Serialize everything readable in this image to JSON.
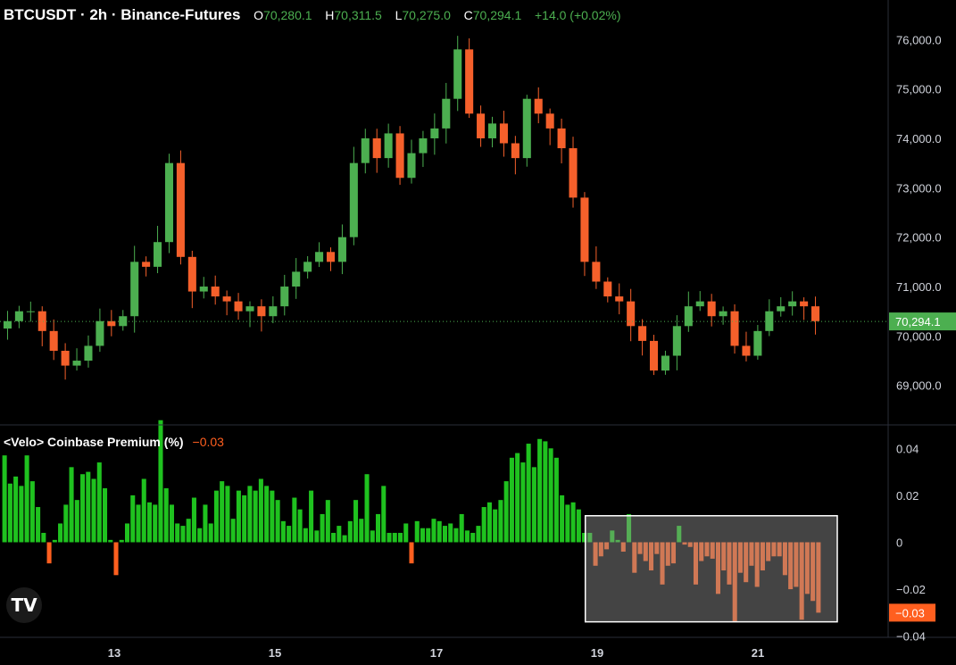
{
  "header": {
    "symbol": "BTCUSDT · 2h · Binance-Futures",
    "o_label": "O",
    "o_value": "70,280.1",
    "h_label": "H",
    "h_value": "70,311.5",
    "l_label": "L",
    "l_value": "70,275.0",
    "c_label": "C",
    "c_value": "70,294.1",
    "change": "+14.0 (+0.02%)"
  },
  "indicator": {
    "name": "<Velo> Coinbase Premium (%)",
    "value": "−0.03"
  },
  "logo_text": "TV",
  "colors": {
    "up": "#1fc21f",
    "down": "#ff5f1f",
    "candle_up": "#4caf50",
    "candle_down": "#f5602b",
    "price_tag": "#4caf50",
    "premium_tag": "#ff5f1f"
  },
  "chart_data": [
    {
      "type": "candlestick",
      "title": "BTCUSDT · 2h · Binance-Futures",
      "x_ticks": [
        "13",
        "15",
        "17",
        "19",
        "21"
      ],
      "y_ticks": [
        "76,000.0",
        "75,000.0",
        "74,000.0",
        "73,000.0",
        "72,000.0",
        "71,000.0",
        "70,000.0",
        "69,000.0"
      ],
      "y_tick_values": [
        76000,
        75000,
        74000,
        73000,
        72000,
        71000,
        70000,
        69000
      ],
      "ylim": [
        68200,
        76800
      ],
      "last_price": 70294.1,
      "last_price_label": "70,294.1",
      "close_path": [
        70300,
        70500,
        70500,
        70100,
        69700,
        69400,
        69500,
        69800,
        70300,
        70200,
        70400,
        71500,
        71400,
        71900,
        73500,
        71600,
        70900,
        71000,
        70800,
        70700,
        70500,
        70600,
        70400,
        70600,
        71000,
        71300,
        71500,
        71700,
        71500,
        72000,
        73500,
        74000,
        73600,
        74100,
        73200,
        73700,
        74000,
        74200,
        74800,
        75800,
        74500,
        74000,
        74300,
        73900,
        73600,
        74800,
        74500,
        74200,
        73800,
        72800,
        71500,
        71100,
        70800,
        70700,
        70200,
        69900,
        69300,
        69600,
        70200,
        70600,
        70700,
        70400,
        70500,
        69800,
        69600,
        70100,
        70500,
        70600,
        70700,
        70600,
        70300
      ]
    },
    {
      "type": "bar",
      "title": "<Velo> Coinbase Premium (%)",
      "y_ticks": [
        "0.04",
        "0.02",
        "0",
        "−0.02",
        "−0.04"
      ],
      "y_tick_values": [
        0.04,
        0.02,
        0,
        -0.02,
        -0.04
      ],
      "ylim": [
        -0.0405,
        0.05
      ],
      "current_value": -0.03,
      "current_value_label": "−0.03",
      "values": [
        0.037,
        0.025,
        0.028,
        0.024,
        0.037,
        0.026,
        0.015,
        0.004,
        -0.009,
        0.001,
        0.008,
        0.016,
        0.032,
        0.018,
        0.029,
        0.03,
        0.027,
        0.034,
        0.023,
        0.001,
        -0.014,
        0.001,
        0.008,
        0.02,
        0.016,
        0.027,
        0.017,
        0.016,
        0.052,
        0.023,
        0.016,
        0.008,
        0.007,
        0.01,
        0.019,
        0.006,
        0.016,
        0.008,
        0.022,
        0.026,
        0.024,
        0.01,
        0.022,
        0.02,
        0.024,
        0.022,
        0.027,
        0.024,
        0.022,
        0.018,
        0.009,
        0.007,
        0.019,
        0.014,
        0.006,
        0.022,
        0.005,
        0.012,
        0.018,
        0.004,
        0.007,
        0.003,
        0.009,
        0.018,
        0.01,
        0.029,
        0.005,
        0.012,
        0.024,
        0.004,
        0.004,
        0.004,
        0.008,
        -0.009,
        0.009,
        0.006,
        0.006,
        0.01,
        0.009,
        0.007,
        0.008,
        0.006,
        0.012,
        0.005,
        0.004,
        0.007,
        0.015,
        0.017,
        0.014,
        0.018,
        0.026,
        0.036,
        0.038,
        0.034,
        0.042,
        0.032,
        0.044,
        0.043,
        0.04,
        0.036,
        0.02,
        0.016,
        0.017,
        0.014,
        0.004,
        0.004,
        -0.01,
        -0.006,
        -0.003,
        0.005,
        0.001,
        -0.004,
        0.012,
        -0.013,
        -0.005,
        -0.008,
        -0.012,
        -0.005,
        -0.018,
        -0.01,
        -0.009,
        0.007,
        -0.001,
        -0.002,
        -0.018,
        -0.008,
        -0.006,
        -0.007,
        -0.022,
        -0.012,
        -0.018,
        -0.034,
        -0.013,
        -0.017,
        -0.01,
        -0.019,
        -0.012,
        -0.008,
        -0.006,
        -0.006,
        -0.014,
        -0.02,
        -0.019,
        -0.033,
        -0.022,
        -0.025,
        -0.03
      ]
    }
  ]
}
